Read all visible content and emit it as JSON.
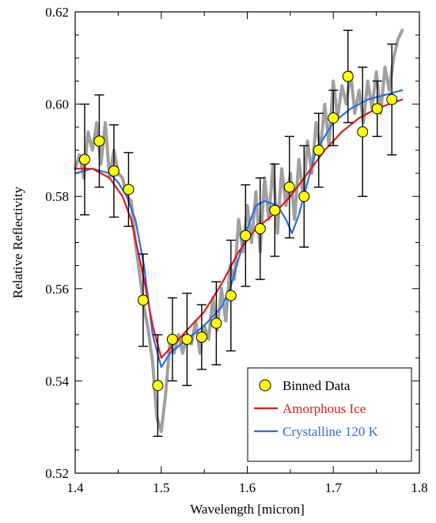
{
  "chart_data": {
    "type": "line",
    "title": "",
    "xlabel": "Wavelength [micron]",
    "ylabel": "Relative Reflectivity",
    "xlim": [
      1.4,
      1.8
    ],
    "ylim": [
      0.52,
      0.62
    ],
    "x_ticks": [
      "1.4",
      "1.5",
      "1.6",
      "1.7",
      "1.8"
    ],
    "y_ticks": [
      "0.52",
      "0.54",
      "0.56",
      "0.58",
      "0.60",
      "0.62"
    ],
    "grid": false,
    "legend_position": "bottom-right",
    "legend": [
      {
        "label": "Binned Data",
        "marker": "circle",
        "color": "#ffff00"
      },
      {
        "label": "Amorphous Ice",
        "marker": "line",
        "color": "#e31a1c"
      },
      {
        "label": "Crystalline 120 K",
        "marker": "line",
        "color": "#2a6ee8"
      }
    ],
    "series": [
      {
        "name": "Binned Data",
        "kind": "points_with_errorbars",
        "color": "#ffff00",
        "points": [
          {
            "x": 1.411,
            "y": 0.588,
            "err": 0.012
          },
          {
            "x": 1.428,
            "y": 0.592,
            "err": 0.01
          },
          {
            "x": 1.445,
            "y": 0.5855,
            "err": 0.01
          },
          {
            "x": 1.462,
            "y": 0.5815,
            "err": 0.008
          },
          {
            "x": 1.479,
            "y": 0.5575,
            "err": 0.01
          },
          {
            "x": 1.496,
            "y": 0.539,
            "err": 0.011
          },
          {
            "x": 1.513,
            "y": 0.549,
            "err": 0.009
          },
          {
            "x": 1.53,
            "y": 0.549,
            "err": 0.01
          },
          {
            "x": 1.547,
            "y": 0.5495,
            "err": 0.007
          },
          {
            "x": 1.564,
            "y": 0.5525,
            "err": 0.009
          },
          {
            "x": 1.581,
            "y": 0.5585,
            "err": 0.012
          },
          {
            "x": 1.598,
            "y": 0.5715,
            "err": 0.011
          },
          {
            "x": 1.615,
            "y": 0.573,
            "err": 0.011
          },
          {
            "x": 1.632,
            "y": 0.577,
            "err": 0.01
          },
          {
            "x": 1.649,
            "y": 0.582,
            "err": 0.011
          },
          {
            "x": 1.666,
            "y": 0.58,
            "err": 0.011
          },
          {
            "x": 1.683,
            "y": 0.59,
            "err": 0.008
          },
          {
            "x": 1.7,
            "y": 0.597,
            "err": 0.006
          },
          {
            "x": 1.717,
            "y": 0.606,
            "err": 0.01
          },
          {
            "x": 1.734,
            "y": 0.594,
            "err": 0.014
          },
          {
            "x": 1.751,
            "y": 0.599,
            "err": 0.006
          },
          {
            "x": 1.768,
            "y": 0.601,
            "err": 0.012
          }
        ]
      },
      {
        "name": "Amorphous Ice",
        "color": "#e31a1c",
        "x": [
          1.4,
          1.42,
          1.44,
          1.455,
          1.465,
          1.48,
          1.49,
          1.5,
          1.51,
          1.53,
          1.55,
          1.57,
          1.59,
          1.61,
          1.63,
          1.65,
          1.67,
          1.69,
          1.71,
          1.73,
          1.75,
          1.78
        ],
        "y": [
          0.586,
          0.586,
          0.584,
          0.58,
          0.575,
          0.562,
          0.552,
          0.545,
          0.547,
          0.551,
          0.555,
          0.561,
          0.568,
          0.573,
          0.576,
          0.58,
          0.585,
          0.59,
          0.594,
          0.597,
          0.599,
          0.601
        ]
      },
      {
        "name": "Crystalline 120 K",
        "color": "#2a6ee8",
        "x": [
          1.4,
          1.42,
          1.44,
          1.45,
          1.46,
          1.47,
          1.48,
          1.49,
          1.5,
          1.51,
          1.53,
          1.55,
          1.57,
          1.58,
          1.6,
          1.61,
          1.62,
          1.635,
          1.645,
          1.652,
          1.66,
          1.67,
          1.68,
          1.7,
          1.72,
          1.74,
          1.76,
          1.78
        ],
        "y": [
          0.585,
          0.586,
          0.585,
          0.583,
          0.58,
          0.575,
          0.565,
          0.55,
          0.543,
          0.546,
          0.549,
          0.552,
          0.556,
          0.56,
          0.573,
          0.578,
          0.579,
          0.578,
          0.575,
          0.572,
          0.576,
          0.583,
          0.59,
          0.596,
          0.599,
          0.601,
          0.602,
          0.603
        ]
      },
      {
        "name": "",
        "kind": "raw_spectrum",
        "color": "#a0a0a0",
        "x": [
          1.4,
          1.405,
          1.41,
          1.415,
          1.42,
          1.425,
          1.43,
          1.435,
          1.44,
          1.445,
          1.45,
          1.455,
          1.46,
          1.465,
          1.47,
          1.475,
          1.48,
          1.485,
          1.49,
          1.495,
          1.5,
          1.505,
          1.51,
          1.515,
          1.52,
          1.525,
          1.53,
          1.535,
          1.54,
          1.545,
          1.55,
          1.555,
          1.56,
          1.565,
          1.57,
          1.575,
          1.58,
          1.585,
          1.59,
          1.595,
          1.6,
          1.605,
          1.61,
          1.615,
          1.62,
          1.625,
          1.63,
          1.635,
          1.64,
          1.645,
          1.65,
          1.655,
          1.66,
          1.665,
          1.67,
          1.675,
          1.68,
          1.685,
          1.69,
          1.695,
          1.7,
          1.705,
          1.71,
          1.715,
          1.72,
          1.725,
          1.73,
          1.735,
          1.74,
          1.745,
          1.75,
          1.755,
          1.76,
          1.765,
          1.77,
          1.775,
          1.78
        ],
        "y": [
          0.586,
          0.589,
          0.584,
          0.594,
          0.59,
          0.596,
          0.587,
          0.596,
          0.584,
          0.59,
          0.585,
          0.584,
          0.58,
          0.579,
          0.57,
          0.563,
          0.556,
          0.551,
          0.544,
          0.532,
          0.529,
          0.537,
          0.548,
          0.546,
          0.55,
          0.546,
          0.55,
          0.548,
          0.553,
          0.546,
          0.552,
          0.549,
          0.558,
          0.551,
          0.56,
          0.553,
          0.565,
          0.562,
          0.575,
          0.568,
          0.578,
          0.57,
          0.581,
          0.568,
          0.584,
          0.575,
          0.587,
          0.572,
          0.586,
          0.578,
          0.585,
          0.575,
          0.588,
          0.58,
          0.592,
          0.585,
          0.596,
          0.59,
          0.6,
          0.591,
          0.605,
          0.597,
          0.604,
          0.6,
          0.607,
          0.598,
          0.603,
          0.596,
          0.605,
          0.599,
          0.607,
          0.598,
          0.608,
          0.603,
          0.61,
          0.614,
          0.616
        ]
      }
    ]
  }
}
